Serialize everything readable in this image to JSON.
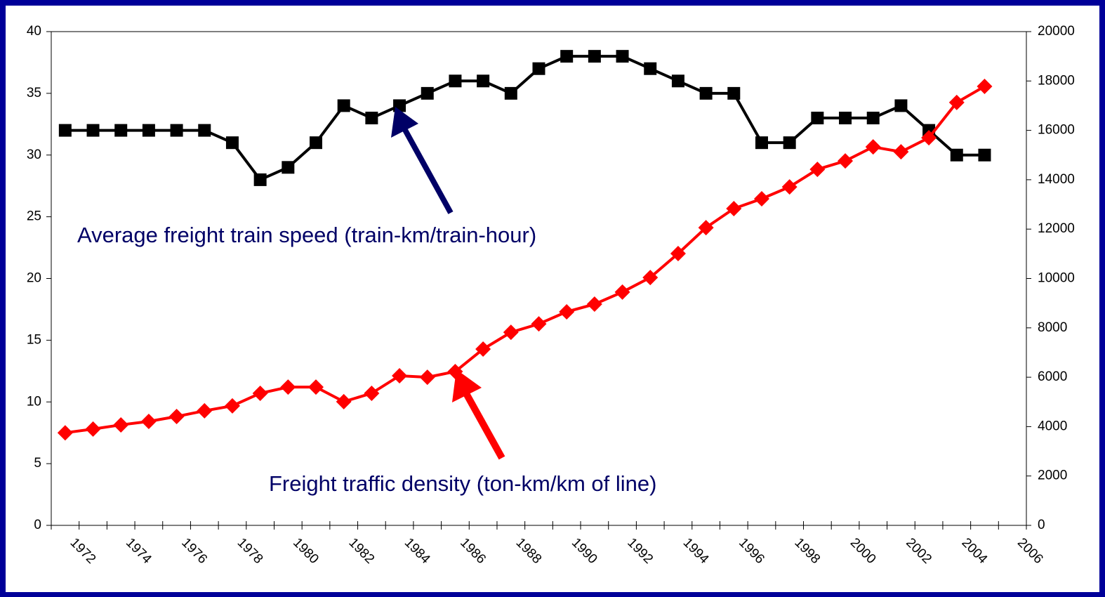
{
  "chart_data": {
    "type": "line",
    "x": [
      1971.5,
      1972.5,
      1973.5,
      1974.5,
      1975.5,
      1976.5,
      1977.5,
      1978.5,
      1979.5,
      1980.5,
      1981.5,
      1982.5,
      1983.5,
      1984.5,
      1985.5,
      1986.5,
      1987.5,
      1988.5,
      1989.5,
      1990.5,
      1991.5,
      1992.5,
      1993.5,
      1994.5,
      1995.5,
      1996.5,
      1997.5,
      1998.5,
      1999.5,
      2000.5,
      2001.5,
      2002.5,
      2003.5,
      2004.5
    ],
    "series": [
      {
        "name": "Average freight train speed (train-km/train-hour)",
        "color": "#000000",
        "marker": "square",
        "values": [
          32,
          32,
          32,
          32,
          32,
          32,
          31,
          28,
          29,
          31,
          34,
          33,
          34,
          35,
          36,
          36,
          35,
          37,
          38,
          38,
          38,
          37,
          36,
          35,
          35,
          31,
          31,
          33,
          33,
          33,
          34,
          32,
          30,
          30
        ]
      },
      {
        "name": "Freight traffic density (ton-km/km of line)",
        "color": "#ff0000",
        "marker": "diamond",
        "axis": "y2",
        "values": [
          3750,
          3900,
          4070,
          4210,
          4410,
          4640,
          4840,
          5350,
          5600,
          5600,
          5010,
          5350,
          6060,
          6000,
          6230,
          7140,
          7820,
          8160,
          8650,
          8960,
          9450,
          10040,
          11010,
          12060,
          12830,
          13230,
          13710,
          14420,
          14760,
          15330,
          15130,
          15700,
          17130,
          17780
        ]
      }
    ],
    "xlim": [
      1971,
      2006
    ],
    "xticks": [
      1972,
      1974,
      1976,
      1978,
      1980,
      1982,
      1984,
      1986,
      1988,
      1990,
      1992,
      1994,
      1996,
      1998,
      2000,
      2002,
      2004,
      2006
    ],
    "xminorticks": [
      1971,
      1973,
      1975,
      1977,
      1979,
      1981,
      1983,
      1985,
      1987,
      1989,
      1991,
      1993,
      1995,
      1997,
      1999,
      2001,
      2003,
      2005
    ],
    "ylim": [
      0,
      40
    ],
    "yticks": [
      0,
      5,
      10,
      15,
      20,
      25,
      30,
      35,
      40
    ],
    "y2lim": [
      0,
      20000
    ],
    "y2ticks": [
      0,
      2000,
      4000,
      6000,
      8000,
      10000,
      12000,
      14000,
      16000,
      18000,
      20000
    ],
    "grid": false
  }
}
